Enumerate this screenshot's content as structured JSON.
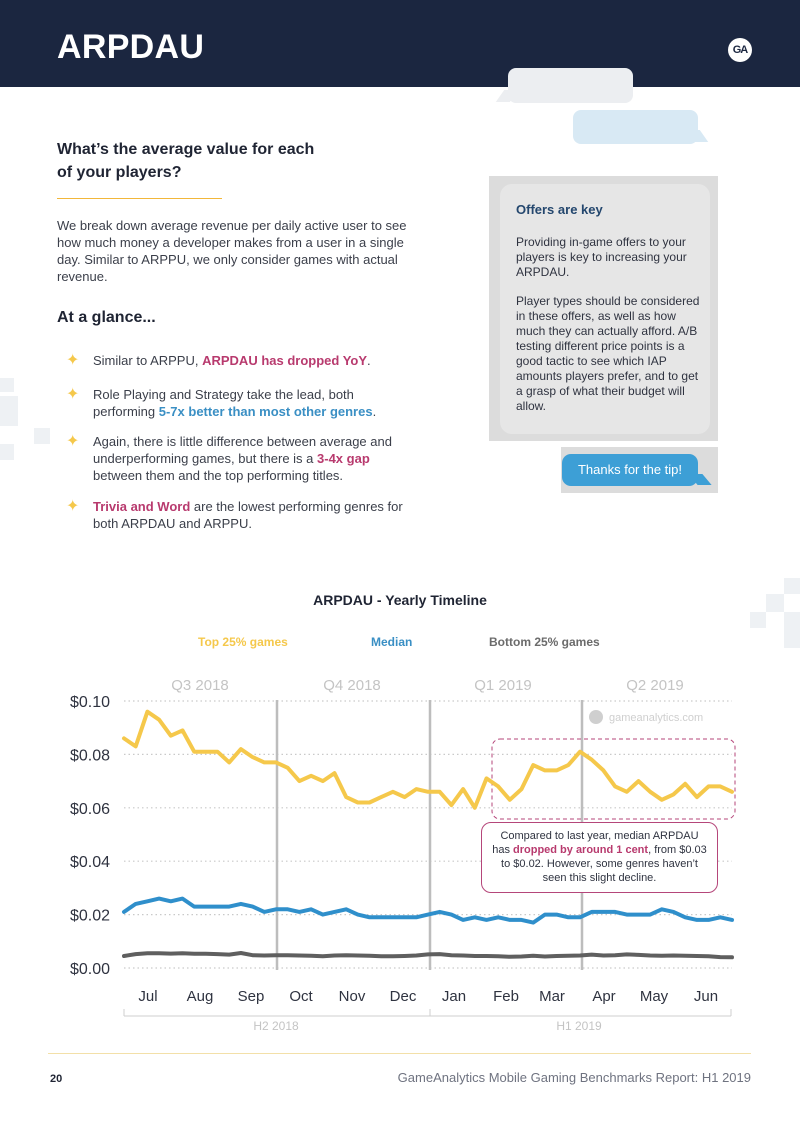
{
  "header": {
    "title": "ARPDAU",
    "logo_text": "GA"
  },
  "intro": {
    "heading": "What’s the average value for each of your players?",
    "text": "We break down average revenue per daily active user to see how much money a developer makes from a user in a single day. Similar to ARPPU, we only consider games with actual revenue."
  },
  "glance": {
    "heading": "At a glance...",
    "bullets": [
      {
        "pre": "Similar to ARPPU, ",
        "highlight": "ARPDAU has dropped YoY",
        "post": "."
      },
      {
        "pre": "Role Playing and Strategy take the lead, both performing ",
        "highlight": "5-7x better than most other genres",
        "post": "."
      },
      {
        "pre": "Again, there is little difference between average and underperforming games, but there is a ",
        "highlight": "3-4x gap",
        "post": " between them and the top performing titles."
      },
      {
        "pre": "",
        "highlight": "Trivia and Word",
        "post": " are the lowest performing genres for both ARPDAU and ARPPU."
      }
    ]
  },
  "offers": {
    "title": "Offers are key",
    "p1": "Providing in-game offers to your players is key to increasing your ARPDAU.",
    "p2": "Player types should be considered in these offers, as well as how much they can actually afford. A/B testing different price points is a good tactic to see which IAP amounts players prefer, and to get a grasp of what their budget will allow."
  },
  "reply": {
    "text": "Thanks for the tip!"
  },
  "chart_data": {
    "type": "line",
    "title": "ARPDAU - Yearly Timeline",
    "legend": [
      "Top 25% games",
      "Median",
      "Bottom 25% games"
    ],
    "legend_position": "top",
    "quarters": [
      "Q3 2018",
      "Q4 2018",
      "Q1 2019",
      "Q2 2019"
    ],
    "halves": [
      "H2 2018",
      "H1 2019"
    ],
    "months": [
      "Jul",
      "Aug",
      "Sep",
      "Oct",
      "Nov",
      "Dec",
      "Jan",
      "Feb",
      "Mar",
      "Apr",
      "May",
      "Jun"
    ],
    "y_ticks": [
      "$0.00",
      "$0.02",
      "$0.04",
      "$0.06",
      "$0.08",
      "$0.10"
    ],
    "ylim": [
      0,
      0.1
    ],
    "grid": true,
    "watermark": "gameanalytics.com",
    "colors": {
      "top": "#f5c84b",
      "median": "#2f8fcb",
      "bottom": "#5f5f5f"
    },
    "series": [
      {
        "name": "Top 25% games",
        "values": [
          0.086,
          0.083,
          0.096,
          0.093,
          0.087,
          0.089,
          0.081,
          0.081,
          0.081,
          0.077,
          0.082,
          0.079,
          0.077,
          0.077,
          0.075,
          0.07,
          0.072,
          0.07,
          0.073,
          0.064,
          0.062,
          0.062,
          0.064,
          0.066,
          0.064,
          0.067,
          0.066,
          0.066,
          0.061,
          0.067,
          0.06,
          0.071,
          0.068,
          0.063,
          0.067,
          0.076,
          0.074,
          0.074,
          0.076,
          0.081,
          0.078,
          0.074,
          0.068,
          0.066,
          0.07,
          0.066,
          0.063,
          0.065,
          0.069,
          0.064,
          0.068,
          0.068,
          0.066
        ]
      },
      {
        "name": "Median",
        "values": [
          0.021,
          0.024,
          0.025,
          0.026,
          0.025,
          0.026,
          0.023,
          0.023,
          0.023,
          0.023,
          0.024,
          0.023,
          0.021,
          0.022,
          0.022,
          0.021,
          0.022,
          0.02,
          0.021,
          0.022,
          0.02,
          0.019,
          0.019,
          0.019,
          0.019,
          0.019,
          0.02,
          0.021,
          0.02,
          0.018,
          0.019,
          0.018,
          0.019,
          0.018,
          0.018,
          0.017,
          0.02,
          0.02,
          0.019,
          0.019,
          0.021,
          0.021,
          0.021,
          0.02,
          0.02,
          0.02,
          0.022,
          0.021,
          0.019,
          0.018,
          0.018,
          0.019,
          0.018
        ]
      },
      {
        "name": "Bottom 25% games",
        "values": [
          0.0045,
          0.0052,
          0.0055,
          0.0055,
          0.0054,
          0.0055,
          0.0053,
          0.0053,
          0.0052,
          0.005,
          0.0056,
          0.0048,
          0.0047,
          0.0048,
          0.0048,
          0.0047,
          0.0046,
          0.0044,
          0.0047,
          0.0048,
          0.0047,
          0.0046,
          0.0044,
          0.0044,
          0.0045,
          0.0047,
          0.0051,
          0.0052,
          0.0048,
          0.0047,
          0.0045,
          0.0045,
          0.0044,
          0.0042,
          0.0043,
          0.0046,
          0.0043,
          0.0045,
          0.0046,
          0.0047,
          0.005,
          0.0047,
          0.0048,
          0.0051,
          0.0049,
          0.0047,
          0.0046,
          0.0047,
          0.0046,
          0.0045,
          0.0044,
          0.0041,
          0.004
        ]
      }
    ],
    "annotation": {
      "pre": "Compared to last year, median ARPDAU has ",
      "highlight": "dropped by around 1 cent",
      "post": ", from $0.03 to $0.02. However, some genres haven’t seen this slight decline."
    }
  },
  "footer": {
    "page_number": "20",
    "text": "GameAnalytics Mobile Gaming Benchmarks Report: H1 2019"
  }
}
